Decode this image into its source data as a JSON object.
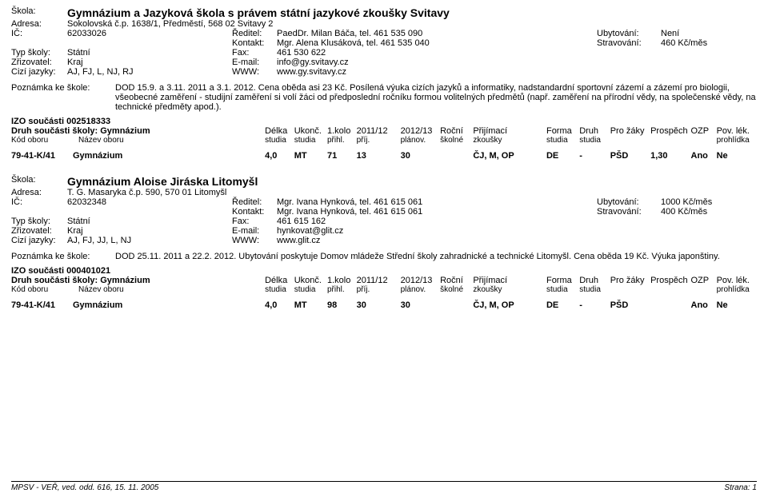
{
  "footer": {
    "left": "MPSV - VEŘ, ved. odd. 616, 15. 11. 2005",
    "right": "Strana: 1"
  },
  "labels": {
    "skola": "Škola:",
    "adresa": "Adresa:",
    "ic": "IČ:",
    "typ": "Typ školy:",
    "zriz": "Zřizovatel:",
    "cizi": "Cizí jazyky:",
    "reditel": "Ředitel:",
    "kontakt": "Kontakt:",
    "fax": "Fax:",
    "email": "E-mail:",
    "www": "WWW:",
    "ubyt": "Ubytování:",
    "strav": "Stravování:",
    "pozn": "Poznámka ke škole:",
    "druh": "Druh součásti školy:"
  },
  "thead": {
    "kod": "Kód oboru",
    "naz": "Název oboru",
    "delka": "Délka studia",
    "ukonc": "Ukonč. studia",
    "kolo1a": "1.kolo",
    "kolo1b": "přihl.",
    "kolo2a": "2011/12",
    "kolo2b": "příj.",
    "plana": "2012/13",
    "planb": "plánov.",
    "rocnia": "Roční",
    "rocnib": "školné",
    "prija": "Přijímací",
    "prijb": "zkoušky",
    "formaa": "Forma",
    "formab": "studia",
    "druhsta": "Druh",
    "druhstb": "studia",
    "prozaky": "Pro žáky",
    "prosp": "Prospěch",
    "ozp": "OZP",
    "povla": "Pov. lék.",
    "povlb": "prohlídka"
  },
  "schools": [
    {
      "name": "Gymnázium a Jazyková škola s právem státní jazykové zkoušky Svitavy",
      "adresa": "Sokolovská č.p. 1638/1, Předměstí, 568 02 Svitavy 2",
      "ic": "62033026",
      "reditel": "PaedDr. Milan Báča, tel. 461 535 090",
      "kontakt": "Mgr. Alena Klusáková, tel. 461 535 040",
      "typ": "Státní",
      "fax": "461 530 622",
      "zriz": "Kraj",
      "email": "info@gy.svitavy.cz",
      "cizi": "AJ, FJ, L, NJ, RJ",
      "www": "www.gy.svitavy.cz",
      "ubyt": "Není",
      "strav": "460 Kč/měs",
      "pozn": "DOD 15.9. a 3.11. 2011 a 3.1. 2012. Cena oběda asi 23 Kč. Posílená výuka cizích jazyků a informatiky, nadstandardní sportovní zázemí a zázemí pro biologii, všeobecné zaměření - studijní zaměření si volí žáci od předposlední ročníku formou volitelných předmětů (např. zaměření na přírodní vědy, na společenské vědy, na technické předměty apod.).",
      "izo": "IZO součásti 002518333",
      "druh": "Gymnázium",
      "row": {
        "kod": "79-41-K/41",
        "naz": "Gymnázium",
        "delka": "4,0",
        "ukonc": "MT",
        "k1": "71",
        "k2": "13",
        "plan": "30",
        "rocni": "",
        "prij": "ČJ, M, OP",
        "forma": "DE",
        "druhst": "-",
        "prozaky": "PŠD",
        "prosp": "1,30",
        "ozp": "Ano",
        "povl": "Ne"
      }
    },
    {
      "name": "Gymnázium Aloise Jiráska Litomyšl",
      "adresa": "T. G. Masaryka č.p. 590, 570 01 Litomyšl",
      "ic": "62032348",
      "reditel": "Mgr. Ivana Hynková, tel. 461 615 061",
      "kontakt": "Mgr. Ivana Hynková, tel. 461 615 061",
      "typ": "Státní",
      "fax": "461 615 162",
      "zriz": "Kraj",
      "email": "hynkovat@glit.cz",
      "cizi": "AJ, FJ, JJ, L, NJ",
      "www": "www.glit.cz",
      "ubyt": "1000 Kč/měs",
      "strav": "400 Kč/měs",
      "pozn": "DOD 25.11. 2011 a 22.2. 2012. Ubytování poskytuje Domov mládeže Střední školy zahradnické a technické Litomyšl. Cena oběda 19 Kč. Výuka japonštiny.",
      "izo": "IZO součásti 000401021",
      "druh": "Gymnázium",
      "row": {
        "kod": "79-41-K/41",
        "naz": "Gymnázium",
        "delka": "4,0",
        "ukonc": "MT",
        "k1": "98",
        "k2": "30",
        "plan": "30",
        "rocni": "",
        "prij": "ČJ, M, OP",
        "forma": "DE",
        "druhst": "-",
        "prozaky": "PŠD",
        "prosp": "",
        "ozp": "Ano",
        "povl": "Ne"
      }
    }
  ]
}
